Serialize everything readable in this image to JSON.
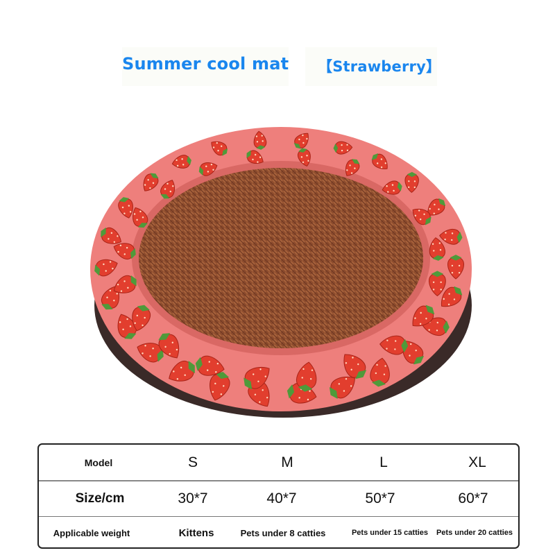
{
  "header": {
    "title": "Summer cool mat",
    "variant": "【Strawberry】",
    "title_color": "#1a86ee"
  },
  "product": {
    "ring_color": "#ee7f7c",
    "mat_color": "#8a4a2c",
    "base_color": "#3a2a28",
    "pattern": "strawberry"
  },
  "size_table": {
    "row_labels": [
      "Model",
      "Size/cm",
      "Applicable weight"
    ],
    "models": [
      "S",
      "M",
      "L",
      "XL"
    ],
    "sizes": [
      "30*7",
      "40*7",
      "50*7",
      "60*7"
    ],
    "weights": [
      "Kittens",
      "Pets under 8 catties",
      "Pets under 15 catties",
      "Pets under 20 catties"
    ]
  }
}
